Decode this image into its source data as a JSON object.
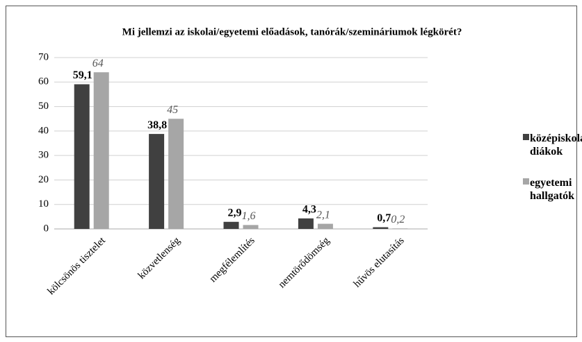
{
  "chart_data": {
    "type": "bar",
    "title": "Mi jellemzi az iskolai/egyetemi előadások, tanórák/szemináriumok légkörét?",
    "categories": [
      "kölcsönös tisztelet",
      "közvetlenség",
      "megfélemlítés",
      "nemtörődömség",
      "hűvös elutasítás"
    ],
    "series": [
      {
        "name": "középiskolás diákok",
        "color": "#404040",
        "values": [
          59.1,
          38.8,
          2.9,
          4.3,
          0.7
        ],
        "value_labels": [
          "59,1",
          "38,8",
          "2,9",
          "4,3",
          "0,7"
        ]
      },
      {
        "name": "egyetemi hallgatók",
        "color": "#a6a6a6",
        "values": [
          64,
          45,
          1.6,
          2.1,
          0.2
        ],
        "value_labels": [
          "64",
          "45",
          "1,6",
          "2,1",
          "0,2"
        ]
      }
    ],
    "ylim": [
      0,
      70
    ],
    "yticks": [
      0,
      10,
      20,
      30,
      40,
      50,
      60,
      70
    ],
    "grid": true,
    "legend": "right"
  }
}
